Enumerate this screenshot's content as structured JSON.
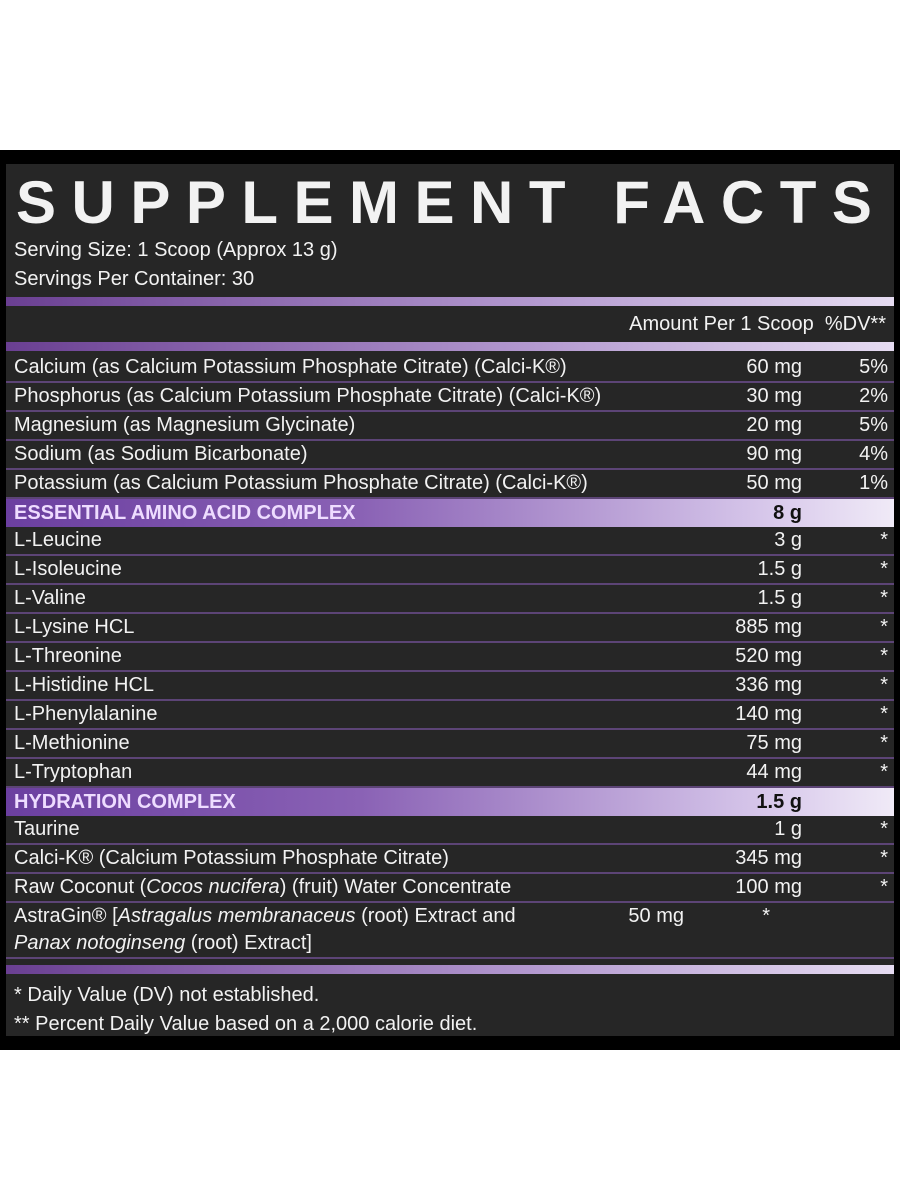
{
  "header": {
    "title": "SUPPLEMENT FACTS",
    "serving_size": "Serving Size: 1 Scoop (Approx 13 g)",
    "servings_per_container": "Servings Per Container: 30"
  },
  "column_header": {
    "amount": "Amount Per 1 Scoop",
    "dv": "%DV**"
  },
  "groups": [
    {
      "rows": [
        {
          "name": [
            "Calcium (as Calcium Potassium Phosphate Citrate) (Calci-K®)"
          ],
          "amount": "60 mg",
          "dv": "5%"
        },
        {
          "name": [
            "Phosphorus (as Calcium Potassium Phosphate Citrate) (Calci-K®)"
          ],
          "amount": "30 mg",
          "dv": "2%"
        },
        {
          "name": [
            "Magnesium (as Magnesium Glycinate)"
          ],
          "amount": "20 mg",
          "dv": "5%"
        },
        {
          "name": [
            "Sodium (as Sodium Bicarbonate)"
          ],
          "amount": "90 mg",
          "dv": "4%"
        },
        {
          "name": [
            "Potassium (as Calcium Potassium Phosphate Citrate) (Calci-K®)"
          ],
          "amount": "50 mg",
          "dv": "1%"
        }
      ]
    },
    {
      "name": "ESSENTIAL AMINO ACID COMPLEX",
      "amount": "8 g",
      "rows": [
        {
          "name": [
            "L-Leucine"
          ],
          "amount": "3 g",
          "dv": "*"
        },
        {
          "name": [
            "L-Isoleucine"
          ],
          "amount": "1.5 g",
          "dv": "*"
        },
        {
          "name": [
            "L-Valine"
          ],
          "amount": "1.5 g",
          "dv": "*"
        },
        {
          "name": [
            "L-Lysine HCL"
          ],
          "amount": "885 mg",
          "dv": "*"
        },
        {
          "name": [
            "L-Threonine"
          ],
          "amount": "520 mg",
          "dv": "*"
        },
        {
          "name": [
            "L-Histidine HCL"
          ],
          "amount": "336 mg",
          "dv": "*"
        },
        {
          "name": [
            "L-Phenylalanine"
          ],
          "amount": "140 mg",
          "dv": "*"
        },
        {
          "name": [
            "L-Methionine"
          ],
          "amount": "75 mg",
          "dv": "*"
        },
        {
          "name": [
            "L-Tryptophan"
          ],
          "amount": "44 mg",
          "dv": "*"
        }
      ]
    },
    {
      "name": "HYDRATION COMPLEX",
      "amount": "1.5 g",
      "rows": [
        {
          "name": [
            "Taurine"
          ],
          "amount": "1 g",
          "dv": "*"
        },
        {
          "name": [
            "Calci-K® (Calcium Potassium Phosphate Citrate)"
          ],
          "amount": "345 mg",
          "dv": "*"
        },
        {
          "name": [
            "Raw Coconut (",
            "Cocos nucifera",
            ") (fruit) Water Concentrate"
          ],
          "amount": "100 mg",
          "dv": "*"
        },
        {
          "name": [
            "AstraGin® [",
            "Astragalus membranaceus",
            " (root) Extract and ",
            "Panax notoginseng",
            " (root) Extract]"
          ],
          "amount": "50 mg",
          "dv": "*"
        }
      ]
    }
  ],
  "footnotes": [
    "* Daily Value (DV) not established.",
    "** Percent Daily Value based on a 2,000 calorie diet."
  ]
}
